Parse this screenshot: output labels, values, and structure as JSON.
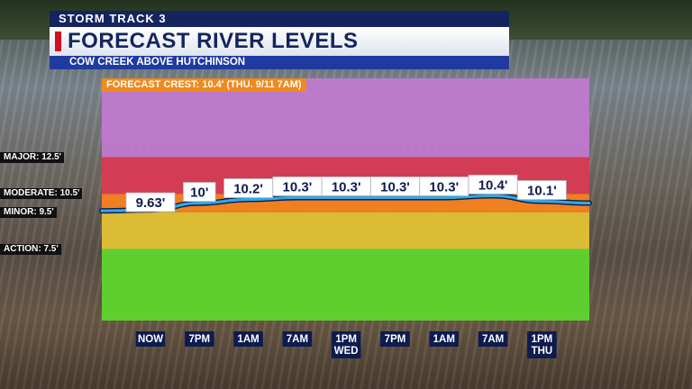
{
  "header": {
    "network": "STORM TRACK 3",
    "title": "FORECAST RIVER LEVELS",
    "location": "COW CREEK ABOVE HUTCHINSON"
  },
  "crest_note": "FORECAST CREST: 10.4' (THU. 9/11 7AM)",
  "stages": [
    {
      "label": "MAJOR: 12.5'",
      "value": 12.5
    },
    {
      "label": "MODERATE: 10.5'",
      "value": 10.5
    },
    {
      "label": "MINOR: 9.5'",
      "value": 9.5
    },
    {
      "label": "ACTION: 7.5'",
      "value": 7.5
    }
  ],
  "colors": {
    "major": "#c27ad0",
    "moderate": "#d43c53",
    "minor": "#ef7f20",
    "action": "#dcbc35",
    "normal": "#5fcf30",
    "line": "#34a8de",
    "label_bg": "#0d1b4f"
  },
  "chart_data": {
    "type": "line",
    "categories": [
      "NOW",
      "7PM",
      "1AM",
      "7AM",
      "1PM\nWED",
      "7PM",
      "1AM",
      "7AM",
      "1PM\nTHU"
    ],
    "values": [
      9.63,
      10.0,
      10.2,
      10.3,
      10.3,
      10.3,
      10.3,
      10.4,
      10.1
    ],
    "data_labels": [
      "9.63'",
      "10'",
      "10.2'",
      "10.3'",
      "10.3'",
      "10.3'",
      "10.3'",
      "10.4'",
      "10.1'"
    ],
    "ylim": [
      3.6,
      16.8
    ],
    "bands": [
      {
        "name": "major",
        "from": 12.5,
        "to": 16.8
      },
      {
        "name": "moderate",
        "from": 10.5,
        "to": 12.5
      },
      {
        "name": "minor",
        "from": 9.5,
        "to": 10.5
      },
      {
        "name": "action",
        "from": 7.5,
        "to": 9.5
      },
      {
        "name": "normal",
        "from": 3.6,
        "to": 7.5
      }
    ],
    "xlabel": "",
    "ylabel": "",
    "grid": false
  }
}
